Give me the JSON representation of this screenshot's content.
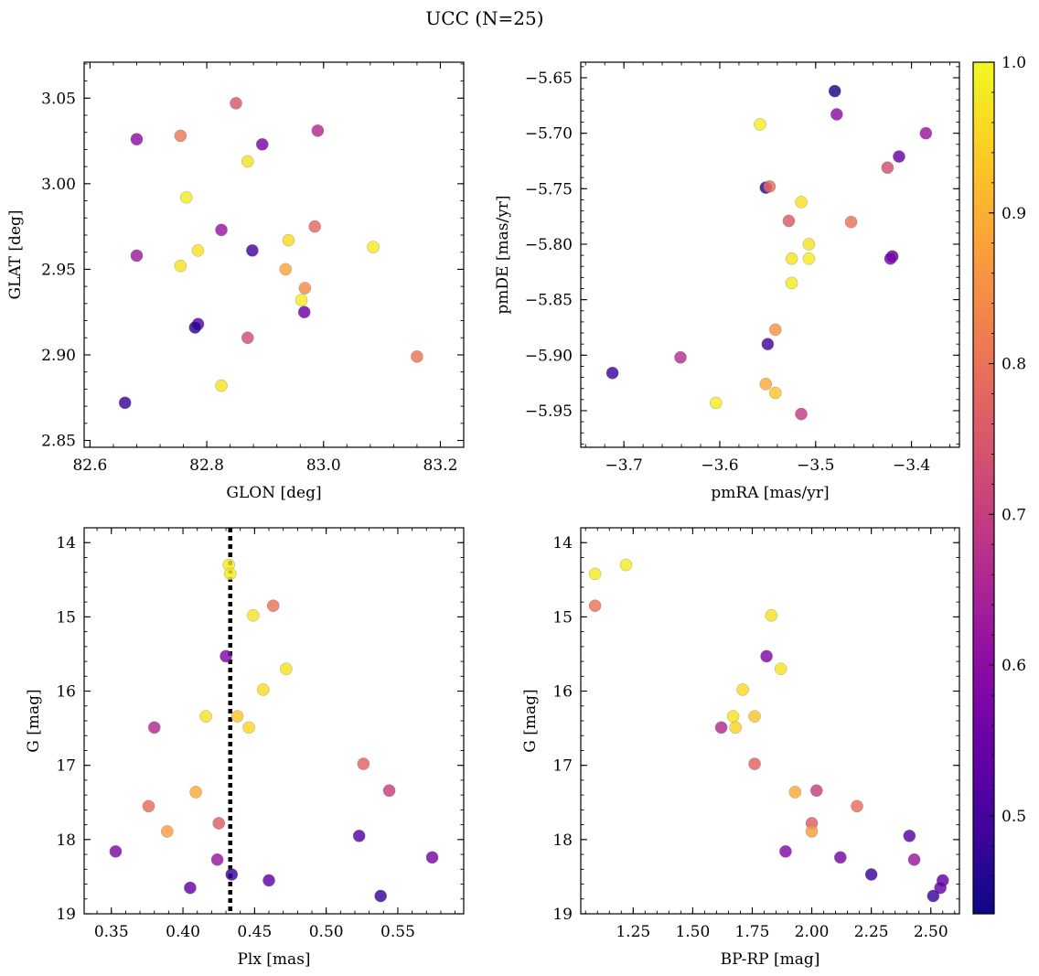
{
  "figure": {
    "title": "UCC (N=25)"
  },
  "colorbar": {
    "range": [
      0.435,
      1.0
    ],
    "ticks": [
      0.5,
      0.6,
      0.7,
      0.8,
      0.9,
      1.0
    ],
    "tick_labels": [
      "0.5",
      "0.6",
      "0.7",
      "0.8",
      "0.9",
      "1.0"
    ],
    "colormap": "plasma"
  },
  "chart_data": [
    {
      "type": "scatter",
      "id": "lb",
      "xlabel": "GLON [deg]",
      "ylabel": "GLAT [deg]",
      "xlim": [
        82.59,
        83.24
      ],
      "ylim": [
        2.846,
        3.071
      ],
      "xticks": [
        82.6,
        82.8,
        83.0,
        83.2
      ],
      "xtick_labels": [
        "82.6",
        "82.8",
        "83.0",
        "83.2"
      ],
      "yticks": [
        2.85,
        2.9,
        2.95,
        3.0,
        3.05
      ],
      "ytick_labels": [
        "2.85",
        "2.90",
        "2.95",
        "3.00",
        "3.05"
      ],
      "inverted_y": false,
      "points": [
        {
          "x": 82.85,
          "y": 3.047,
          "c": 0.75
        },
        {
          "x": 82.99,
          "y": 3.031,
          "c": 0.66
        },
        {
          "x": 82.68,
          "y": 3.026,
          "c": 0.6
        },
        {
          "x": 82.755,
          "y": 3.028,
          "c": 0.81
        },
        {
          "x": 82.895,
          "y": 3.023,
          "c": 0.57
        },
        {
          "x": 82.87,
          "y": 3.013,
          "c": 0.97
        },
        {
          "x": 82.765,
          "y": 2.992,
          "c": 0.98
        },
        {
          "x": 82.825,
          "y": 2.973,
          "c": 0.62
        },
        {
          "x": 82.985,
          "y": 2.975,
          "c": 0.78
        },
        {
          "x": 82.94,
          "y": 2.967,
          "c": 0.96
        },
        {
          "x": 83.085,
          "y": 2.963,
          "c": 0.98
        },
        {
          "x": 82.68,
          "y": 2.958,
          "c": 0.63
        },
        {
          "x": 82.785,
          "y": 2.961,
          "c": 0.97
        },
        {
          "x": 82.878,
          "y": 2.961,
          "c": 0.5
        },
        {
          "x": 82.755,
          "y": 2.952,
          "c": 0.97
        },
        {
          "x": 82.935,
          "y": 2.95,
          "c": 0.88
        },
        {
          "x": 82.968,
          "y": 2.939,
          "c": 0.84
        },
        {
          "x": 82.962,
          "y": 2.932,
          "c": 0.98
        },
        {
          "x": 82.967,
          "y": 2.925,
          "c": 0.55
        },
        {
          "x": 82.785,
          "y": 2.918,
          "c": 0.52
        },
        {
          "x": 82.78,
          "y": 2.916,
          "c": 0.46
        },
        {
          "x": 82.87,
          "y": 2.91,
          "c": 0.73
        },
        {
          "x": 83.16,
          "y": 2.899,
          "c": 0.8
        },
        {
          "x": 82.825,
          "y": 2.882,
          "c": 0.97
        },
        {
          "x": 82.66,
          "y": 2.872,
          "c": 0.48
        }
      ]
    },
    {
      "type": "scatter",
      "id": "pm",
      "xlabel": "pmRA [mas/yr]",
      "ylabel": "pmDE [mas/yr]",
      "xlim": [
        -3.745,
        -3.35
      ],
      "ylim": [
        -5.983,
        -5.636
      ],
      "xticks": [
        -3.7,
        -3.6,
        -3.5,
        -3.4
      ],
      "xtick_labels": [
        "−3.7",
        "−3.6",
        "−3.5",
        "−3.4"
      ],
      "yticks": [
        -5.95,
        -5.9,
        -5.85,
        -5.8,
        -5.75,
        -5.7,
        -5.65
      ],
      "ytick_labels": [
        "−5.95",
        "−5.90",
        "−5.85",
        "−5.80",
        "−5.75",
        "−5.70",
        "−5.65"
      ],
      "inverted_y": false,
      "points": [
        {
          "x": -3.48,
          "y": -5.662,
          "c": 0.44
        },
        {
          "x": -3.478,
          "y": -5.683,
          "c": 0.6
        },
        {
          "x": -3.558,
          "y": -5.692,
          "c": 0.98
        },
        {
          "x": -3.385,
          "y": -5.7,
          "c": 0.62
        },
        {
          "x": -3.413,
          "y": -5.721,
          "c": 0.54
        },
        {
          "x": -3.425,
          "y": -5.731,
          "c": 0.73
        },
        {
          "x": -3.552,
          "y": -5.749,
          "c": 0.47
        },
        {
          "x": -3.548,
          "y": -5.748,
          "c": 0.79
        },
        {
          "x": -3.515,
          "y": -5.762,
          "c": 0.97
        },
        {
          "x": -3.528,
          "y": -5.779,
          "c": 0.75
        },
        {
          "x": -3.463,
          "y": -5.78,
          "c": 0.8
        },
        {
          "x": -3.507,
          "y": -5.8,
          "c": 0.97
        },
        {
          "x": -3.42,
          "y": -5.811,
          "c": 0.53
        },
        {
          "x": -3.422,
          "y": -5.813,
          "c": 0.57
        },
        {
          "x": -3.525,
          "y": -5.813,
          "c": 0.97
        },
        {
          "x": -3.507,
          "y": -5.813,
          "c": 0.98
        },
        {
          "x": -3.525,
          "y": -5.835,
          "c": 0.98
        },
        {
          "x": -3.542,
          "y": -5.877,
          "c": 0.85
        },
        {
          "x": -3.55,
          "y": -5.89,
          "c": 0.5
        },
        {
          "x": -3.712,
          "y": -5.916,
          "c": 0.49
        },
        {
          "x": -3.641,
          "y": -5.902,
          "c": 0.67
        },
        {
          "x": -3.552,
          "y": -5.926,
          "c": 0.89
        },
        {
          "x": -3.542,
          "y": -5.934,
          "c": 0.93
        },
        {
          "x": -3.604,
          "y": -5.943,
          "c": 0.98
        },
        {
          "x": -3.515,
          "y": -5.953,
          "c": 0.69
        }
      ]
    },
    {
      "type": "scatter",
      "id": "plx",
      "xlabel": "Plx [mas]",
      "ylabel": "G [mag]",
      "xlim": [
        0.331,
        0.596
      ],
      "ylim": [
        13.8,
        19.0
      ],
      "xticks": [
        0.35,
        0.4,
        0.45,
        0.5,
        0.55
      ],
      "xtick_labels": [
        "0.35",
        "0.40",
        "0.45",
        "0.50",
        "0.55"
      ],
      "yticks": [
        14,
        15,
        16,
        17,
        18,
        19
      ],
      "ytick_labels": [
        "14",
        "15",
        "16",
        "17",
        "18",
        "19"
      ],
      "inverted_y": true,
      "vline": 0.433,
      "points": [
        {
          "x": 0.432,
          "y": 14.3,
          "c": 0.98
        },
        {
          "x": 0.433,
          "y": 14.42,
          "c": 0.98
        },
        {
          "x": 0.463,
          "y": 14.85,
          "c": 0.8
        },
        {
          "x": 0.449,
          "y": 14.98,
          "c": 0.97
        },
        {
          "x": 0.43,
          "y": 15.53,
          "c": 0.58
        },
        {
          "x": 0.472,
          "y": 15.7,
          "c": 0.97
        },
        {
          "x": 0.456,
          "y": 15.98,
          "c": 0.96
        },
        {
          "x": 0.416,
          "y": 16.34,
          "c": 0.97
        },
        {
          "x": 0.438,
          "y": 16.34,
          "c": 0.93
        },
        {
          "x": 0.446,
          "y": 16.49,
          "c": 0.95
        },
        {
          "x": 0.38,
          "y": 16.49,
          "c": 0.66
        },
        {
          "x": 0.526,
          "y": 16.98,
          "c": 0.77
        },
        {
          "x": 0.544,
          "y": 17.34,
          "c": 0.7
        },
        {
          "x": 0.409,
          "y": 17.36,
          "c": 0.89
        },
        {
          "x": 0.376,
          "y": 17.55,
          "c": 0.79
        },
        {
          "x": 0.425,
          "y": 17.78,
          "c": 0.76
        },
        {
          "x": 0.389,
          "y": 17.89,
          "c": 0.87
        },
        {
          "x": 0.523,
          "y": 17.95,
          "c": 0.52
        },
        {
          "x": 0.353,
          "y": 18.16,
          "c": 0.58
        },
        {
          "x": 0.574,
          "y": 18.24,
          "c": 0.57
        },
        {
          "x": 0.424,
          "y": 18.27,
          "c": 0.62
        },
        {
          "x": 0.434,
          "y": 18.47,
          "c": 0.48
        },
        {
          "x": 0.46,
          "y": 18.55,
          "c": 0.53
        },
        {
          "x": 0.405,
          "y": 18.65,
          "c": 0.54
        },
        {
          "x": 0.538,
          "y": 18.76,
          "c": 0.48
        }
      ]
    },
    {
      "type": "scatter",
      "id": "cmd",
      "xlabel": "BP-RP [mag]",
      "ylabel": "G [mag]",
      "xlim": [
        1.03,
        2.62
      ],
      "ylim": [
        13.8,
        19.0
      ],
      "xticks": [
        1.25,
        1.5,
        1.75,
        2.0,
        2.25,
        2.5
      ],
      "xtick_labels": [
        "1.25",
        "1.50",
        "1.75",
        "2.00",
        "2.25",
        "2.50"
      ],
      "yticks": [
        14,
        15,
        16,
        17,
        18,
        19
      ],
      "ytick_labels": [
        "14",
        "15",
        "16",
        "17",
        "18",
        "19"
      ],
      "inverted_y": true,
      "points": [
        {
          "x": 1.22,
          "y": 14.3,
          "c": 0.98
        },
        {
          "x": 1.09,
          "y": 14.42,
          "c": 0.98
        },
        {
          "x": 1.09,
          "y": 14.85,
          "c": 0.8
        },
        {
          "x": 1.83,
          "y": 14.98,
          "c": 0.97
        },
        {
          "x": 1.81,
          "y": 15.53,
          "c": 0.58
        },
        {
          "x": 1.87,
          "y": 15.7,
          "c": 0.97
        },
        {
          "x": 1.71,
          "y": 15.98,
          "c": 0.96
        },
        {
          "x": 1.67,
          "y": 16.34,
          "c": 0.97
        },
        {
          "x": 1.76,
          "y": 16.34,
          "c": 0.93
        },
        {
          "x": 1.68,
          "y": 16.49,
          "c": 0.95
        },
        {
          "x": 1.62,
          "y": 16.49,
          "c": 0.66
        },
        {
          "x": 1.76,
          "y": 16.98,
          "c": 0.77
        },
        {
          "x": 2.02,
          "y": 17.34,
          "c": 0.7
        },
        {
          "x": 1.93,
          "y": 17.36,
          "c": 0.89
        },
        {
          "x": 2.19,
          "y": 17.55,
          "c": 0.79
        },
        {
          "x": 2.0,
          "y": 17.78,
          "c": 0.76
        },
        {
          "x": 2.0,
          "y": 17.89,
          "c": 0.87
        },
        {
          "x": 2.41,
          "y": 17.95,
          "c": 0.52
        },
        {
          "x": 1.89,
          "y": 18.16,
          "c": 0.58
        },
        {
          "x": 2.12,
          "y": 18.24,
          "c": 0.57
        },
        {
          "x": 2.43,
          "y": 18.27,
          "c": 0.62
        },
        {
          "x": 2.25,
          "y": 18.47,
          "c": 0.48
        },
        {
          "x": 2.55,
          "y": 18.55,
          "c": 0.53
        },
        {
          "x": 2.54,
          "y": 18.65,
          "c": 0.54
        },
        {
          "x": 2.51,
          "y": 18.76,
          "c": 0.48
        }
      ]
    }
  ]
}
